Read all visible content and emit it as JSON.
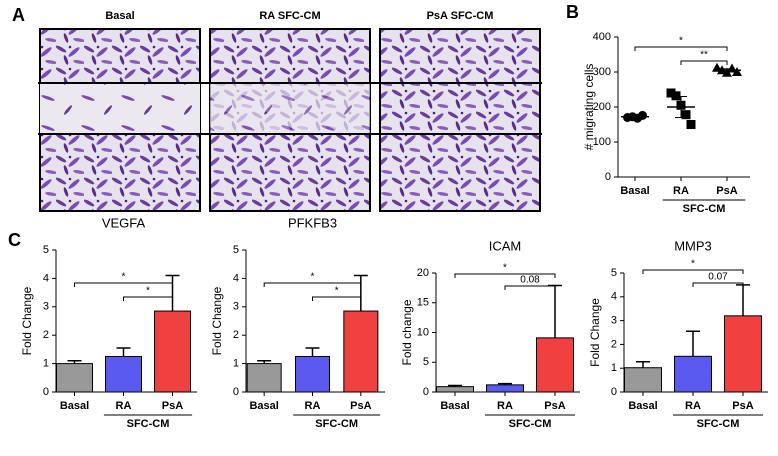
{
  "panel_labels": [
    "A",
    "B",
    "C"
  ],
  "images": {
    "labels": [
      "Basal",
      "RA SFC-CM",
      "PsA SFC-CM"
    ]
  },
  "chart_data": [
    {
      "type": "scatter",
      "ylabel": "# migrating cells",
      "categories": [
        "Basal",
        "RA",
        "PsA"
      ],
      "group_label": "SFC-CM",
      "group_members": [
        "RA",
        "PsA"
      ],
      "markers": [
        "circle",
        "square",
        "triangle"
      ],
      "color": "#000000",
      "points": [
        [
          170,
          172,
          168,
          176
        ],
        [
          240,
          232,
          205,
          178,
          150
        ],
        [
          312,
          305,
          298,
          310,
          300
        ]
      ],
      "means": [
        172,
        200,
        305
      ],
      "errors": [
        3,
        30,
        4
      ],
      "ylim": [
        0,
        400
      ],
      "yticks": [
        0,
        100,
        200,
        300,
        400
      ],
      "annotations": [
        {
          "pair": [
            "Basal",
            "PsA"
          ],
          "label": "*"
        },
        {
          "pair": [
            "RA",
            "PsA"
          ],
          "label": "**"
        }
      ]
    },
    {
      "type": "bar",
      "title": "VEGFA",
      "ylabel": "Fold Change",
      "categories": [
        "Basal",
        "RA",
        "PsA"
      ],
      "group_label": "SFC-CM",
      "group_members": [
        "RA",
        "PsA"
      ],
      "values": [
        1,
        1.25,
        2.85
      ],
      "errors": [
        0.1,
        0.3,
        1.25
      ],
      "colors": [
        "#999999",
        "#5a5af0",
        "#f04040"
      ],
      "ylim": [
        0,
        5
      ],
      "yticks": [
        0,
        1,
        2,
        3,
        4,
        5
      ],
      "annotations": [
        {
          "pair": [
            "Basal",
            "PsA"
          ],
          "label": "*"
        },
        {
          "pair": [
            "RA",
            "PsA"
          ],
          "label": "*"
        }
      ]
    },
    {
      "type": "bar",
      "title": "PFKFB3",
      "ylabel": "Fold Change",
      "categories": [
        "Basal",
        "RA",
        "PsA"
      ],
      "group_label": "SFC-CM",
      "group_members": [
        "RA",
        "PsA"
      ],
      "values": [
        1,
        1.25,
        2.85
      ],
      "errors": [
        0.1,
        0.3,
        1.25
      ],
      "colors": [
        "#999999",
        "#5a5af0",
        "#f04040"
      ],
      "ylim": [
        0,
        5
      ],
      "yticks": [
        0,
        1,
        2,
        3,
        4,
        5
      ],
      "annotations": [
        {
          "pair": [
            "Basal",
            "PsA"
          ],
          "label": "*"
        },
        {
          "pair": [
            "RA",
            "PsA"
          ],
          "label": "*"
        }
      ]
    },
    {
      "type": "bar",
      "title": "ICAM",
      "ylabel": "Fold change",
      "categories": [
        "Basal",
        "RA",
        "PsA"
      ],
      "group_label": "SFC-CM",
      "group_members": [
        "RA",
        "PsA"
      ],
      "values": [
        0.9,
        1.2,
        9.1
      ],
      "errors": [
        0.2,
        0.2,
        8.8
      ],
      "colors": [
        "#999999",
        "#5a5af0",
        "#f04040"
      ],
      "ylim": [
        0,
        20
      ],
      "yticks": [
        0,
        5,
        10,
        15,
        20
      ],
      "annotations": [
        {
          "pair": [
            "Basal",
            "PsA"
          ],
          "label": "*"
        },
        {
          "pair": [
            "RA",
            "PsA"
          ],
          "label": "0.08"
        }
      ]
    },
    {
      "type": "bar",
      "title": "MMP3",
      "ylabel": "Fold Change",
      "categories": [
        "Basal",
        "RA",
        "PsA"
      ],
      "group_label": "SFC-CM",
      "group_members": [
        "RA",
        "PsA"
      ],
      "values": [
        1.02,
        1.5,
        3.2
      ],
      "errors": [
        0.25,
        1.05,
        1.3
      ],
      "colors": [
        "#999999",
        "#5a5af0",
        "#f04040"
      ],
      "ylim": [
        0,
        5
      ],
      "yticks": [
        0,
        1,
        2,
        3,
        4,
        5
      ],
      "annotations": [
        {
          "pair": [
            "Basal",
            "PsA"
          ],
          "label": "*"
        },
        {
          "pair": [
            "RA",
            "PsA"
          ],
          "label": "0.07"
        }
      ]
    }
  ]
}
